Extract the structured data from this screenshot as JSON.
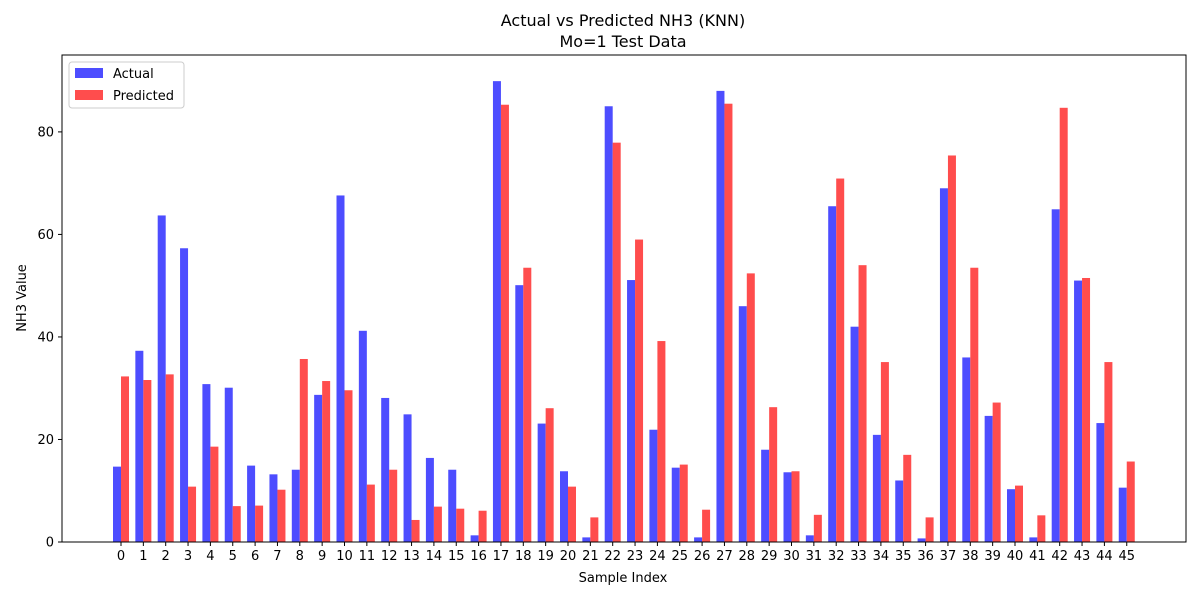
{
  "chart_data": {
    "type": "bar",
    "title": "Actual vs Predicted NH3 (KNN)",
    "subtitle": "Mo=1 Test Data",
    "xlabel": "Sample Index",
    "ylabel": "NH3 Value",
    "ylim": [
      0,
      95
    ],
    "yticks": [
      0,
      20,
      40,
      60,
      80
    ],
    "grid": false,
    "legend_position": "top-left",
    "categories": [
      "0",
      "1",
      "2",
      "3",
      "4",
      "5",
      "6",
      "7",
      "8",
      "9",
      "10",
      "11",
      "12",
      "13",
      "14",
      "15",
      "16",
      "17",
      "18",
      "19",
      "20",
      "21",
      "22",
      "23",
      "24",
      "25",
      "26",
      "27",
      "28",
      "29",
      "30",
      "31",
      "32",
      "33",
      "34",
      "35",
      "36",
      "37",
      "38",
      "39",
      "40",
      "41",
      "42",
      "43",
      "44",
      "45"
    ],
    "series": [
      {
        "name": "Actual",
        "color": "#4d4dff",
        "values": [
          14.7,
          37.3,
          63.7,
          57.3,
          30.8,
          30.1,
          14.9,
          13.2,
          14.1,
          28.7,
          67.6,
          41.2,
          28.1,
          24.9,
          16.4,
          14.1,
          1.3,
          89.9,
          50.1,
          23.1,
          13.8,
          0.9,
          85.0,
          51.1,
          21.9,
          14.5,
          0.9,
          88.0,
          46.0,
          18.0,
          13.6,
          1.3,
          65.5,
          42.0,
          20.9,
          12.0,
          0.7,
          69.0,
          36.0,
          24.6,
          10.3,
          0.9,
          64.9,
          51.0,
          23.2,
          10.6
        ]
      },
      {
        "name": "Predicted",
        "color": "#ff4d4d",
        "values": [
          32.3,
          31.6,
          32.7,
          10.8,
          18.6,
          7.0,
          7.1,
          10.2,
          35.7,
          31.4,
          29.6,
          11.2,
          14.1,
          4.3,
          6.9,
          6.5,
          6.1,
          85.3,
          53.5,
          26.1,
          10.8,
          4.8,
          77.9,
          59.0,
          39.2,
          15.1,
          6.3,
          85.5,
          52.4,
          26.3,
          13.8,
          5.3,
          70.9,
          54.0,
          35.1,
          17.0,
          4.8,
          75.4,
          53.5,
          27.2,
          11.0,
          5.2,
          84.7,
          51.5,
          35.1,
          15.7
        ]
      }
    ]
  }
}
